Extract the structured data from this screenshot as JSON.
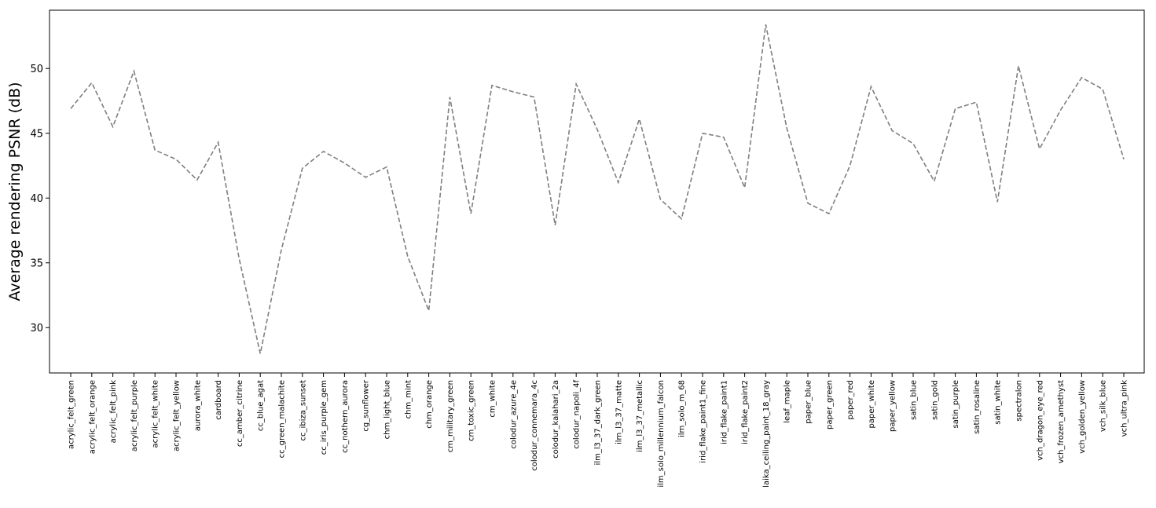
{
  "chart_data": {
    "type": "line",
    "title": "",
    "xlabel": "",
    "ylabel": "Average rendering PSNR (dB)",
    "ylim": [
      26.5,
      54.5
    ],
    "yticks": [
      30,
      35,
      40,
      45,
      50
    ],
    "grid": false,
    "line_style": "dashed",
    "colors": {
      "line": "#7f7f7f",
      "axes": "#000000",
      "background": "#ffffff"
    },
    "categories": [
      "acrylic_felt_green",
      "acrylic_felt_orange",
      "acrylic_felt_pink",
      "acrylic_felt_purple",
      "acrylic_felt_white",
      "acrylic_felt_yellow",
      "aurora_white",
      "cardboard",
      "cc_amber_citrine",
      "cc_blue_agat",
      "cc_green_malachite",
      "cc_ibiza_sunset",
      "cc_iris_purple_gem",
      "cc_nothern_aurora",
      "cg_sunflower",
      "chm_light_blue",
      "chm_mint",
      "chm_orange",
      "cm_military_green",
      "cm_toxic_green",
      "cm_white",
      "colodur_azure_4e",
      "colodur_connemara_4c",
      "colodur_kalahari_2a",
      "colodur_napoli_4f",
      "ilm_l3_37_dark_green",
      "ilm_l3_37_matte",
      "ilm_l3_37_metallic",
      "ilm_solo_millennium_falcon",
      "ilm_solo_m_68",
      "irid_flake_paint1_fine",
      "irid_flake_paint1",
      "irid_flake_paint2",
      "laika_ceiling_paint_18_gray",
      "leaf_maple",
      "paper_blue",
      "paper_green",
      "paper_red",
      "paper_white",
      "paper_yellow",
      "satin_blue",
      "satin_gold",
      "satin_purple",
      "satin_rosaline",
      "satin_white",
      "spectralon",
      "vch_dragon_eye_red",
      "vch_frozen_amethyst",
      "vch_golden_yellow",
      "vch_silk_blue",
      "vch_ultra_pink"
    ],
    "values": [
      46.9,
      48.9,
      45.5,
      49.8,
      43.7,
      43.0,
      41.4,
      44.3,
      35.3,
      28.0,
      36.0,
      42.3,
      43.6,
      42.7,
      41.6,
      42.4,
      35.5,
      31.3,
      47.8,
      38.8,
      48.7,
      48.2,
      47.8,
      37.9,
      48.8,
      45.3,
      41.2,
      46.1,
      39.9,
      38.4,
      45.0,
      44.7,
      40.8,
      53.4,
      45.4,
      39.6,
      38.8,
      42.5,
      48.6,
      45.2,
      44.2,
      41.3,
      46.9,
      47.4,
      39.7,
      50.2,
      43.8,
      46.8,
      49.3,
      48.4,
      43.0
    ]
  }
}
